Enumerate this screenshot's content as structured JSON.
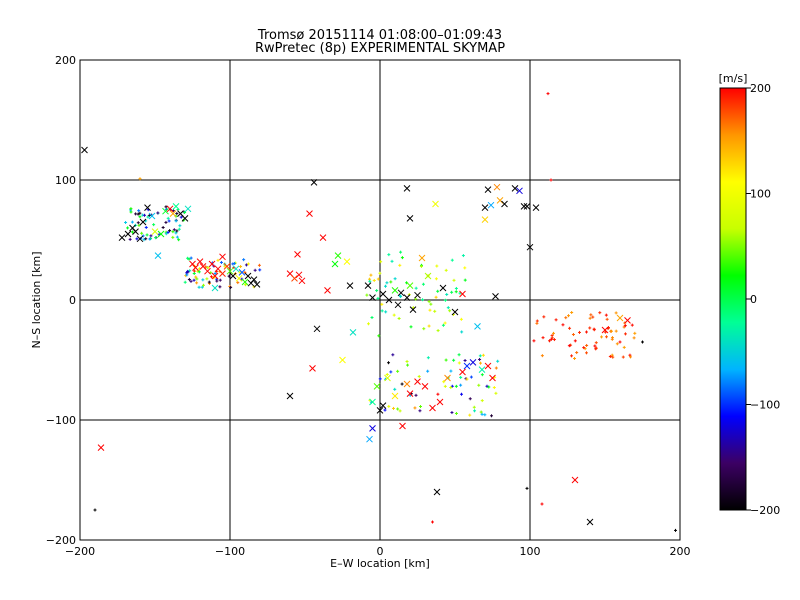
{
  "chart_data": {
    "type": "scatter",
    "title": "Tromsø 20151114 01:08:00–01:09:43",
    "subtitle": "RwPretec (8p) EXPERIMENTAL SKYMAP",
    "xlabel": "E–W location [km]",
    "ylabel": "N–S location [km]",
    "xlim": [
      -200,
      200
    ],
    "ylim": [
      -200,
      200
    ],
    "xticks": [
      -200,
      -100,
      0,
      100,
      200
    ],
    "yticks": [
      -200,
      -100,
      0,
      100,
      200
    ],
    "grid_lines": [
      -100,
      0,
      100
    ],
    "grid": true,
    "colorbar": {
      "label": "[m/s]",
      "min": -200,
      "max": 200,
      "ticks": [
        200,
        100,
        0,
        -100,
        -200
      ],
      "colors": [
        "#000000",
        "#3c0064",
        "#0000ff",
        "#00b4ff",
        "#00ff96",
        "#00ff00",
        "#c8ff00",
        "#ffff00",
        "#ff9600",
        "#ff0000"
      ]
    },
    "clusters": [
      {
        "region": "north-west band",
        "x": [
          -170,
          -130
        ],
        "y": [
          50,
          78
        ],
        "velocity": [
          -200,
          50
        ]
      },
      {
        "region": "west band",
        "x": [
          -130,
          -80
        ],
        "y": [
          10,
          35
        ],
        "velocity": [
          -200,
          200
        ]
      },
      {
        "region": "center",
        "x": [
          -10,
          60
        ],
        "y": [
          -30,
          40
        ],
        "velocity": [
          -50,
          150
        ]
      },
      {
        "region": "south-center",
        "x": [
          -10,
          80
        ],
        "y": [
          -100,
          -45
        ],
        "velocity": [
          -200,
          200
        ]
      },
      {
        "region": "east",
        "x": [
          100,
          170
        ],
        "y": [
          -50,
          -10
        ],
        "velocity": [
          150,
          200
        ]
      }
    ],
    "points": [
      {
        "x": -197,
        "y": 125,
        "v": -200,
        "m": "x"
      },
      {
        "x": -186,
        "y": -123,
        "v": 200,
        "m": "x"
      },
      {
        "x": -172,
        "y": 52,
        "v": -200,
        "m": "x"
      },
      {
        "x": -168,
        "y": 55,
        "v": -200,
        "m": "x"
      },
      {
        "x": -165,
        "y": 60,
        "v": -200,
        "m": "x"
      },
      {
        "x": -163,
        "y": 57,
        "v": -200,
        "m": "x"
      },
      {
        "x": -160,
        "y": 51,
        "v": -200,
        "m": "x"
      },
      {
        "x": -158,
        "y": 65,
        "v": -200,
        "m": "x"
      },
      {
        "x": -155,
        "y": 77,
        "v": -200,
        "m": "x"
      },
      {
        "x": -152,
        "y": 70,
        "v": -60,
        "m": "x"
      },
      {
        "x": -150,
        "y": 57,
        "v": 80,
        "m": "x"
      },
      {
        "x": -148,
        "y": 37,
        "v": -60,
        "m": "x"
      },
      {
        "x": -146,
        "y": 55,
        "v": 20,
        "m": "x"
      },
      {
        "x": -143,
        "y": 74,
        "v": 10,
        "m": "x"
      },
      {
        "x": -140,
        "y": 76,
        "v": 200,
        "m": "x"
      },
      {
        "x": -138,
        "y": 72,
        "v": 150,
        "m": "x"
      },
      {
        "x": -136,
        "y": 78,
        "v": -20,
        "m": "x"
      },
      {
        "x": -133,
        "y": 72,
        "v": -200,
        "m": "x"
      },
      {
        "x": -130,
        "y": 68,
        "v": -200,
        "m": "x"
      },
      {
        "x": -128,
        "y": 76,
        "v": -40,
        "m": "x"
      },
      {
        "x": -125,
        "y": 30,
        "v": 200,
        "m": "x"
      },
      {
        "x": -123,
        "y": 27,
        "v": 200,
        "m": "x"
      },
      {
        "x": -120,
        "y": 32,
        "v": 200,
        "m": "x"
      },
      {
        "x": -118,
        "y": 28,
        "v": 200,
        "m": "x"
      },
      {
        "x": -115,
        "y": 24,
        "v": 200,
        "m": "x"
      },
      {
        "x": -112,
        "y": 30,
        "v": 200,
        "m": "x"
      },
      {
        "x": -110,
        "y": 20,
        "v": 200,
        "m": "x"
      },
      {
        "x": -108,
        "y": 26,
        "v": 200,
        "m": "x"
      },
      {
        "x": -105,
        "y": 22,
        "v": 190,
        "m": "x"
      },
      {
        "x": -102,
        "y": 28,
        "v": 180,
        "m": "x"
      },
      {
        "x": -100,
        "y": 24,
        "v": 40,
        "m": "x"
      },
      {
        "x": -98,
        "y": 20,
        "v": -200,
        "m": "x"
      },
      {
        "x": -96,
        "y": 26,
        "v": -40,
        "m": "x"
      },
      {
        "x": -94,
        "y": 18,
        "v": 100,
        "m": "x"
      },
      {
        "x": -92,
        "y": 23,
        "v": -90,
        "m": "x"
      },
      {
        "x": -90,
        "y": 15,
        "v": 30,
        "m": "x"
      },
      {
        "x": -88,
        "y": 20,
        "v": -200,
        "m": "x"
      },
      {
        "x": -86,
        "y": 14,
        "v": -200,
        "m": "x"
      },
      {
        "x": -84,
        "y": 17,
        "v": -200,
        "m": "x"
      },
      {
        "x": -82,
        "y": 13,
        "v": -200,
        "m": "x"
      },
      {
        "x": -110,
        "y": 10,
        "v": -40,
        "m": "x"
      },
      {
        "x": -105,
        "y": 36,
        "v": 200,
        "m": "x"
      },
      {
        "x": -60,
        "y": 22,
        "v": 200,
        "m": "x"
      },
      {
        "x": -57,
        "y": 18,
        "v": 180,
        "m": "x"
      },
      {
        "x": -54,
        "y": 21,
        "v": 200,
        "m": "x"
      },
      {
        "x": -52,
        "y": 16,
        "v": 200,
        "m": "x"
      },
      {
        "x": -55,
        "y": 38,
        "v": 200,
        "m": "x"
      },
      {
        "x": -47,
        "y": 72,
        "v": 200,
        "m": "x"
      },
      {
        "x": -44,
        "y": 98,
        "v": -200,
        "m": "x"
      },
      {
        "x": -38,
        "y": 52,
        "v": 200,
        "m": "x"
      },
      {
        "x": -30,
        "y": 30,
        "v": 20,
        "m": "x"
      },
      {
        "x": -28,
        "y": 37,
        "v": 30,
        "m": "x"
      },
      {
        "x": -35,
        "y": 8,
        "v": 200,
        "m": "x"
      },
      {
        "x": -42,
        "y": -24,
        "v": -200,
        "m": "x"
      },
      {
        "x": -22,
        "y": 32,
        "v": 110,
        "m": "x"
      },
      {
        "x": -18,
        "y": -27,
        "v": -40,
        "m": "x"
      },
      {
        "x": -20,
        "y": 12,
        "v": -200,
        "m": "x"
      },
      {
        "x": -25,
        "y": -50,
        "v": 110,
        "m": "x"
      },
      {
        "x": -60,
        "y": -80,
        "v": -200,
        "m": "x"
      },
      {
        "x": -45,
        "y": -57,
        "v": 200,
        "m": "x"
      },
      {
        "x": -8,
        "y": 12,
        "v": -200,
        "m": "x"
      },
      {
        "x": -5,
        "y": 2,
        "v": -200,
        "m": "x"
      },
      {
        "x": 2,
        "y": 5,
        "v": -200,
        "m": "x"
      },
      {
        "x": 6,
        "y": 0,
        "v": -200,
        "m": "x"
      },
      {
        "x": 10,
        "y": 8,
        "v": 30,
        "m": "x"
      },
      {
        "x": 12,
        "y": -4,
        "v": -200,
        "m": "x"
      },
      {
        "x": 14,
        "y": 6,
        "v": -200,
        "m": "x"
      },
      {
        "x": 18,
        "y": 2,
        "v": -200,
        "m": "x"
      },
      {
        "x": 20,
        "y": 12,
        "v": 40,
        "m": "x"
      },
      {
        "x": 22,
        "y": -8,
        "v": -200,
        "m": "x"
      },
      {
        "x": 25,
        "y": 4,
        "v": -200,
        "m": "x"
      },
      {
        "x": 28,
        "y": 35,
        "v": 150,
        "m": "x"
      },
      {
        "x": 32,
        "y": 20,
        "v": 60,
        "m": "x"
      },
      {
        "x": 18,
        "y": 93,
        "v": -200,
        "m": "x"
      },
      {
        "x": 20,
        "y": 68,
        "v": -200,
        "m": "x"
      },
      {
        "x": 37,
        "y": 80,
        "v": 100,
        "m": "x"
      },
      {
        "x": 42,
        "y": 10,
        "v": -200,
        "m": "x"
      },
      {
        "x": 50,
        "y": -10,
        "v": -200,
        "m": "x"
      },
      {
        "x": 55,
        "y": 5,
        "v": 200,
        "m": "x"
      },
      {
        "x": 65,
        "y": -22,
        "v": -60,
        "m": "x"
      },
      {
        "x": 70,
        "y": 77,
        "v": -200,
        "m": "x"
      },
      {
        "x": 72,
        "y": 92,
        "v": -200,
        "m": "x"
      },
      {
        "x": 74,
        "y": 79,
        "v": -70,
        "m": "x"
      },
      {
        "x": 78,
        "y": 94,
        "v": 160,
        "m": "x"
      },
      {
        "x": 80,
        "y": 83,
        "v": 150,
        "m": "x"
      },
      {
        "x": 83,
        "y": 80,
        "v": -200,
        "m": "x"
      },
      {
        "x": 90,
        "y": 93,
        "v": -200,
        "m": "x"
      },
      {
        "x": 93,
        "y": 91,
        "v": -120,
        "m": "x"
      },
      {
        "x": 96,
        "y": 78,
        "v": -200,
        "m": "x"
      },
      {
        "x": 98,
        "y": 78,
        "v": -200,
        "m": "x"
      },
      {
        "x": 100,
        "y": 44,
        "v": -200,
        "m": "x"
      },
      {
        "x": 104,
        "y": 77,
        "v": -200,
        "m": "x"
      },
      {
        "x": 77,
        "y": 3,
        "v": -200,
        "m": "x"
      },
      {
        "x": 70,
        "y": 67,
        "v": 130,
        "m": "x"
      },
      {
        "x": 165,
        "y": -17,
        "v": 200,
        "m": "x"
      },
      {
        "x": 160,
        "y": -15,
        "v": 150,
        "m": "x"
      },
      {
        "x": 150,
        "y": -25,
        "v": 200,
        "m": "x"
      },
      {
        "x": 130,
        "y": -150,
        "v": 200,
        "m": "x"
      },
      {
        "x": 140,
        "y": -185,
        "v": -200,
        "m": "x"
      },
      {
        "x": -5,
        "y": -107,
        "v": -120,
        "m": "x"
      },
      {
        "x": -7,
        "y": -116,
        "v": -70,
        "m": "x"
      },
      {
        "x": 0,
        "y": -92,
        "v": -200,
        "m": "x"
      },
      {
        "x": 15,
        "y": -105,
        "v": 200,
        "m": "x"
      },
      {
        "x": 38,
        "y": -160,
        "v": -200,
        "m": "x"
      },
      {
        "x": 68,
        "y": -58,
        "v": -30,
        "m": "x"
      },
      {
        "x": 72,
        "y": -55,
        "v": 200,
        "m": "x"
      },
      {
        "x": 75,
        "y": -65,
        "v": 200,
        "m": "x"
      },
      {
        "x": 62,
        "y": -52,
        "v": -120,
        "m": "x"
      },
      {
        "x": 58,
        "y": -55,
        "v": -100,
        "m": "x"
      },
      {
        "x": 55,
        "y": -60,
        "v": 200,
        "m": "x"
      },
      {
        "x": 45,
        "y": -65,
        "v": 160,
        "m": "x"
      },
      {
        "x": 40,
        "y": -85,
        "v": 200,
        "m": "x"
      },
      {
        "x": 35,
        "y": -90,
        "v": 200,
        "m": "x"
      },
      {
        "x": 30,
        "y": -72,
        "v": 200,
        "m": "x"
      },
      {
        "x": 25,
        "y": -68,
        "v": 200,
        "m": "x"
      },
      {
        "x": 20,
        "y": -78,
        "v": 200,
        "m": "x"
      },
      {
        "x": 18,
        "y": -70,
        "v": 160,
        "m": "x"
      },
      {
        "x": 10,
        "y": -80,
        "v": 120,
        "m": "x"
      },
      {
        "x": 5,
        "y": -65,
        "v": 80,
        "m": "x"
      },
      {
        "x": -2,
        "y": -72,
        "v": 40,
        "m": "x"
      },
      {
        "x": -5,
        "y": -85,
        "v": -20,
        "m": "x"
      },
      {
        "x": 2,
        "y": -88,
        "v": -200,
        "m": "x"
      },
      {
        "x": 112,
        "y": 172,
        "v": 200,
        "m": "+"
      },
      {
        "x": 114,
        "y": 100,
        "v": 200,
        "m": "+"
      },
      {
        "x": -160,
        "y": 101,
        "v": 150,
        "m": "+"
      },
      {
        "x": -190,
        "y": -175,
        "v": -200,
        "m": "+"
      },
      {
        "x": 35,
        "y": -185,
        "v": 200,
        "m": "+"
      },
      {
        "x": 98,
        "y": -157,
        "v": -200,
        "m": "+"
      },
      {
        "x": 108,
        "y": -170,
        "v": 200,
        "m": "+"
      },
      {
        "x": 197,
        "y": -192,
        "v": -200,
        "m": "+"
      },
      {
        "x": 175,
        "y": -35,
        "v": -200,
        "m": "+"
      },
      {
        "x": 160,
        "y": -35,
        "v": 200,
        "m": "+"
      }
    ]
  }
}
